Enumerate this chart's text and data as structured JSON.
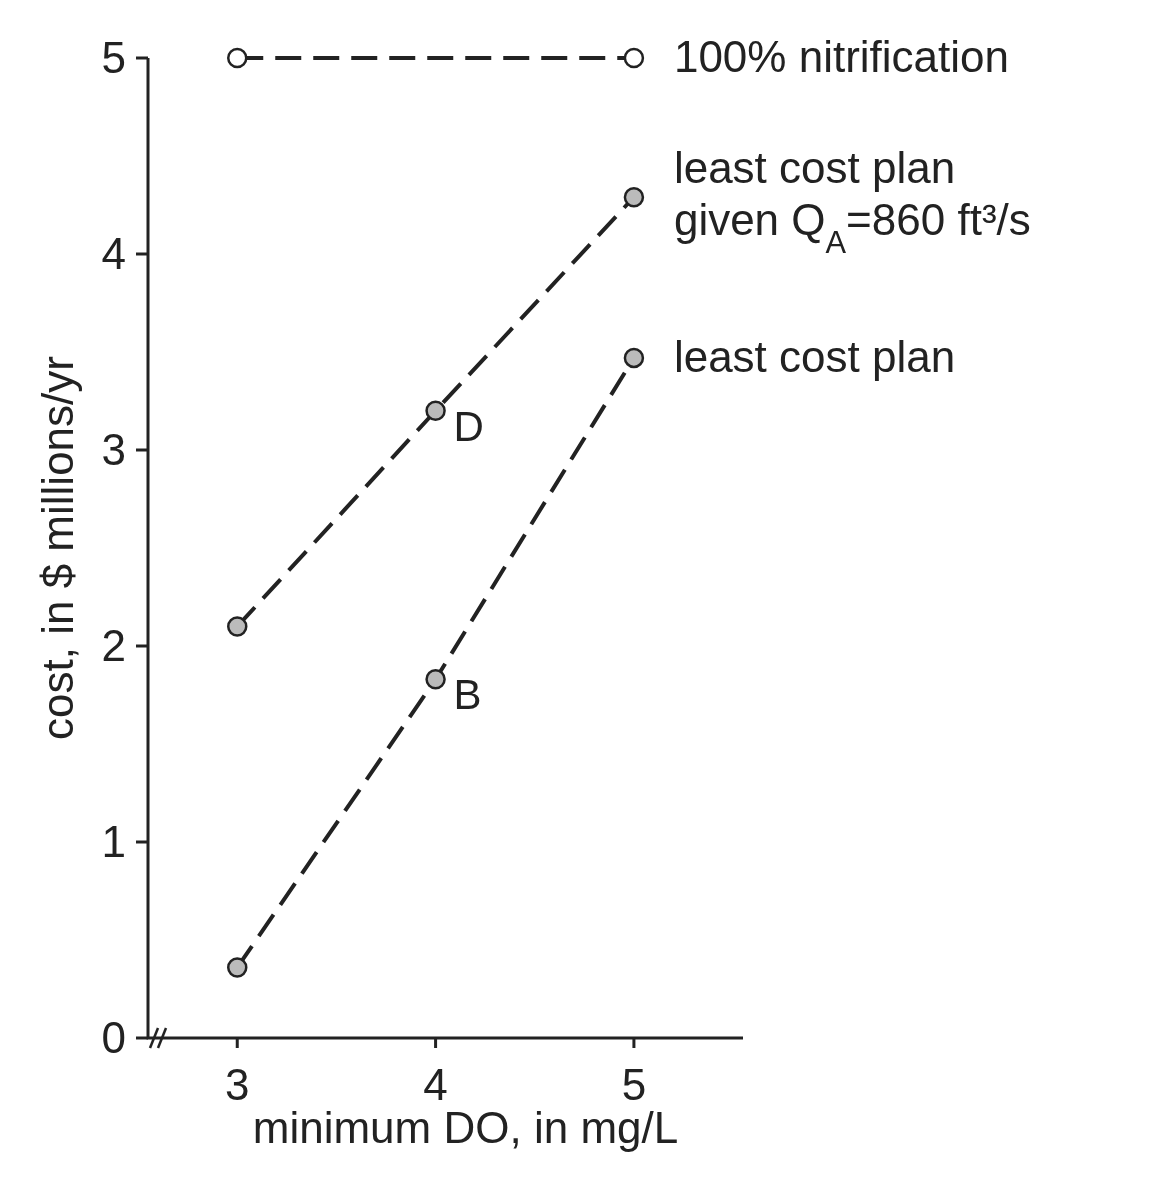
{
  "chart_data": {
    "type": "line",
    "xlabel": "minimum DO, in mg/L",
    "ylabel": "cost, in $ millions/yr",
    "x": [
      3,
      4,
      5
    ],
    "xlim": [
      2.55,
      5.55
    ],
    "xticks": [
      3,
      4,
      5
    ],
    "ylim": [
      0,
      5
    ],
    "yticks": [
      0,
      1,
      2,
      3,
      4,
      5
    ],
    "marker": "circle",
    "line_style": "dashed",
    "grid": false,
    "series": [
      {
        "name": "100% nitrification",
        "color": "#222222",
        "x": [
          3,
          5
        ],
        "values": [
          5,
          5
        ]
      },
      {
        "name": "least cost plan given Q$_{A}$=860 ft³/s",
        "color": "#222222",
        "values": [
          2.1,
          3.2,
          4.29
        ]
      },
      {
        "name": "least cost plan",
        "color": "#222222",
        "values": [
          0.36,
          1.83,
          3.47
        ]
      }
    ],
    "annotations": [
      {
        "text": "D",
        "x": 4,
        "y": 3.2
      },
      {
        "text": "B",
        "x": 4,
        "y": 1.83
      }
    ]
  }
}
